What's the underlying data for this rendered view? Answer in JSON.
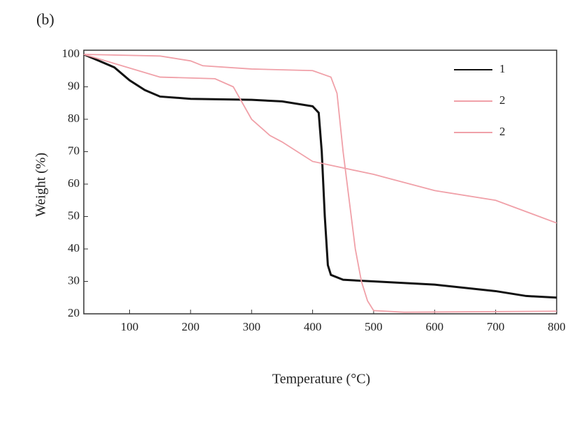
{
  "chart_data": {
    "type": "line",
    "title": "(b)",
    "x_label": "Temperature (°C)",
    "y_label": "Weight (%)",
    "xlim": [
      25,
      800
    ],
    "ylim": [
      20,
      100
    ],
    "xticks": [
      100,
      200,
      300,
      400,
      500,
      600,
      700,
      800
    ],
    "yticks": [
      20,
      30,
      40,
      50,
      60,
      70,
      80,
      90,
      100
    ],
    "series": [
      {
        "name": "1",
        "color": "#111111",
        "x": [
          25,
          50,
          75,
          100,
          125,
          150,
          200,
          300,
          350,
          400,
          410,
          415,
          420,
          425,
          430,
          450,
          500,
          600,
          700,
          750,
          800
        ],
        "values": [
          100,
          98,
          96,
          92,
          89,
          87,
          86.3,
          86,
          85.5,
          84,
          82,
          70,
          50,
          35,
          32,
          30.5,
          30,
          29,
          27,
          25.5,
          25
        ]
      },
      {
        "name": "2",
        "color": "#f0a0a8",
        "x": [
          25,
          150,
          200,
          220,
          300,
          400,
          430,
          440,
          450,
          460,
          470,
          480,
          490,
          500,
          550,
          800
        ],
        "values": [
          100,
          99.5,
          98,
          96.5,
          95.5,
          95,
          93,
          88,
          70,
          55,
          40,
          30,
          24,
          21,
          20.5,
          20.8
        ]
      },
      {
        "name": "2",
        "color": "#f0a0a8",
        "x": [
          25,
          150,
          240,
          270,
          300,
          330,
          350,
          400,
          500,
          600,
          700,
          800
        ],
        "values": [
          100,
          93,
          92.5,
          90,
          80,
          75,
          73,
          67,
          63,
          58,
          55,
          48
        ]
      }
    ]
  }
}
